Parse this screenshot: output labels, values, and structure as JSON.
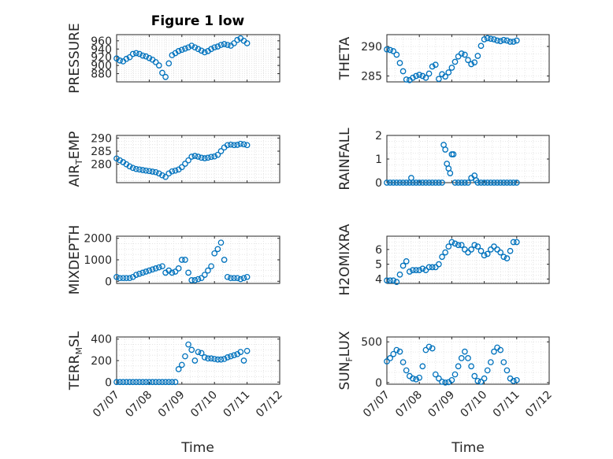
{
  "figure": {
    "title": "Figure 1 low",
    "xlabel": "Time"
  },
  "colors": {
    "marker": "#0072BD",
    "axis": "#262626",
    "grid": "#DFDFDF"
  },
  "x_ticks": [
    "07/07",
    "07/08",
    "07/09",
    "07/10",
    "07/11",
    "07/12"
  ],
  "chart_data": [
    {
      "type": "scatter",
      "id": "pressure",
      "ylabel": "PRESSURE",
      "x_range": [
        "07/07",
        "07/12"
      ],
      "ylim": [
        860,
        975
      ],
      "yticks": [
        880,
        900,
        920,
        940,
        960
      ],
      "grid": true,
      "x": [
        0,
        0.1,
        0.2,
        0.3,
        0.4,
        0.5,
        0.6,
        0.7,
        0.8,
        0.9,
        1.0,
        1.1,
        1.2,
        1.3,
        1.4,
        1.5,
        1.6,
        1.7,
        1.8,
        1.9,
        2.0,
        2.1,
        2.2,
        2.3,
        2.4,
        2.5,
        2.6,
        2.7,
        2.8,
        2.9,
        3.0,
        3.1,
        3.2,
        3.3,
        3.4,
        3.5,
        3.6,
        3.7,
        3.8,
        3.9,
        4.0
      ],
      "y": [
        917,
        912,
        910,
        916,
        920,
        928,
        930,
        928,
        924,
        922,
        918,
        914,
        908,
        900,
        882,
        872,
        905,
        925,
        930,
        935,
        938,
        941,
        944,
        948,
        944,
        940,
        936,
        932,
        935,
        940,
        944,
        946,
        950,
        952,
        950,
        948,
        954,
        962,
        966,
        960,
        954
      ]
    },
    {
      "type": "scatter",
      "id": "theta",
      "ylabel": "THETA",
      "x_range": [
        "07/07",
        "07/12"
      ],
      "ylim": [
        284,
        292
      ],
      "yticks": [
        285,
        290
      ],
      "grid": true,
      "x": [
        0,
        0.1,
        0.2,
        0.3,
        0.4,
        0.5,
        0.6,
        0.7,
        0.8,
        0.9,
        1.0,
        1.1,
        1.2,
        1.3,
        1.4,
        1.5,
        1.6,
        1.7,
        1.8,
        1.9,
        2.0,
        2.1,
        2.2,
        2.3,
        2.4,
        2.5,
        2.6,
        2.7,
        2.8,
        2.9,
        3.0,
        3.1,
        3.2,
        3.3,
        3.4,
        3.5,
        3.6,
        3.7,
        3.8,
        3.9,
        4.0
      ],
      "y": [
        289.5,
        289.4,
        289.2,
        288.6,
        287.2,
        285.8,
        284.4,
        284.3,
        284.7,
        285.0,
        285.2,
        285.0,
        284.7,
        285.4,
        286.6,
        286.9,
        284.5,
        285.3,
        284.9,
        285.6,
        286.4,
        287.4,
        288.3,
        288.8,
        288.6,
        287.7,
        287.0,
        287.3,
        288.4,
        290.1,
        291.2,
        291.4,
        291.3,
        291.2,
        291.0,
        290.9,
        291.1,
        291.0,
        290.8,
        290.8,
        291.0
      ]
    },
    {
      "type": "scatter",
      "id": "air_temp",
      "ylabel": "AIR_TEMP",
      "x_range": [
        "07/07",
        "07/12"
      ],
      "ylim": [
        273,
        291
      ],
      "yticks": [
        280,
        285,
        290
      ],
      "grid": true,
      "x": [
        0,
        0.1,
        0.2,
        0.3,
        0.4,
        0.5,
        0.6,
        0.7,
        0.8,
        0.9,
        1.0,
        1.1,
        1.2,
        1.3,
        1.4,
        1.5,
        1.6,
        1.7,
        1.8,
        1.9,
        2.0,
        2.1,
        2.2,
        2.3,
        2.4,
        2.5,
        2.6,
        2.7,
        2.8,
        2.9,
        3.0,
        3.1,
        3.2,
        3.3,
        3.4,
        3.5,
        3.6,
        3.7,
        3.8,
        3.9,
        4.0
      ],
      "y": [
        282.2,
        281.5,
        280.8,
        280.0,
        279.2,
        278.6,
        278.2,
        278.0,
        277.8,
        277.6,
        277.4,
        277.2,
        277.0,
        276.5,
        275.8,
        275.2,
        276.5,
        277.3,
        277.6,
        278.0,
        278.9,
        280.2,
        281.5,
        282.9,
        283.2,
        282.9,
        282.5,
        282.3,
        282.5,
        282.8,
        283.0,
        283.6,
        285.0,
        286.4,
        287.3,
        287.5,
        287.3,
        287.4,
        287.8,
        287.6,
        287.3
      ]
    },
    {
      "type": "scatter",
      "id": "rainfall",
      "ylabel": "RAINFALL",
      "x_range": [
        "07/07",
        "07/12"
      ],
      "ylim": [
        0,
        2
      ],
      "yticks": [
        0,
        1,
        2
      ],
      "grid": true,
      "x": [
        0,
        0.1,
        0.2,
        0.3,
        0.4,
        0.5,
        0.6,
        0.7,
        0.75,
        0.8,
        0.9,
        1.0,
        1.1,
        1.2,
        1.3,
        1.4,
        1.5,
        1.6,
        1.7,
        1.75,
        1.8,
        1.85,
        1.9,
        1.95,
        2.0,
        2.05,
        2.1,
        2.2,
        2.3,
        2.4,
        2.5,
        2.6,
        2.7,
        2.75,
        2.8,
        2.9,
        3.0,
        3.1,
        3.2,
        3.3,
        3.4,
        3.5,
        3.6,
        3.7,
        3.8,
        3.9,
        4.0
      ],
      "y": [
        0,
        0,
        0,
        0,
        0,
        0,
        0,
        0,
        0.2,
        0,
        0,
        0,
        0,
        0,
        0,
        0,
        0,
        0,
        0,
        1.6,
        1.4,
        0.8,
        0.6,
        0.4,
        1.2,
        1.2,
        0,
        0,
        0,
        0,
        0,
        0.2,
        0.3,
        0.1,
        0,
        0,
        0,
        0,
        0,
        0,
        0,
        0,
        0,
        0,
        0,
        0,
        0
      ]
    },
    {
      "type": "scatter",
      "id": "mixdepth",
      "ylabel": "MIXDEPTH",
      "x_range": [
        "07/07",
        "07/12"
      ],
      "ylim": [
        -100,
        2100
      ],
      "yticks": [
        0,
        1000,
        2000
      ],
      "grid": true,
      "x": [
        0,
        0.1,
        0.2,
        0.3,
        0.4,
        0.5,
        0.6,
        0.7,
        0.8,
        0.9,
        1.0,
        1.1,
        1.2,
        1.3,
        1.4,
        1.5,
        1.6,
        1.7,
        1.8,
        1.9,
        2.0,
        2.1,
        2.2,
        2.3,
        2.4,
        2.5,
        2.6,
        2.7,
        2.8,
        2.9,
        3.0,
        3.1,
        3.2,
        3.3,
        3.4,
        3.5,
        3.6,
        3.7,
        3.8,
        3.9,
        4.0
      ],
      "y": [
        200,
        150,
        150,
        150,
        150,
        200,
        300,
        350,
        400,
        450,
        500,
        550,
        600,
        650,
        700,
        400,
        500,
        400,
        450,
        600,
        1000,
        1000,
        400,
        50,
        50,
        100,
        150,
        300,
        500,
        700,
        1300,
        1500,
        1800,
        1000,
        200,
        150,
        150,
        150,
        100,
        150,
        200
      ]
    },
    {
      "type": "scatter",
      "id": "h2omixra",
      "ylabel": "H2OMIXRA",
      "x_range": [
        "07/07",
        "07/12"
      ],
      "ylim": [
        3.7,
        6.9
      ],
      "yticks": [
        4,
        5,
        6
      ],
      "grid": true,
      "x": [
        0,
        0.1,
        0.2,
        0.3,
        0.4,
        0.5,
        0.6,
        0.7,
        0.8,
        0.9,
        1.0,
        1.1,
        1.2,
        1.3,
        1.4,
        1.5,
        1.6,
        1.7,
        1.8,
        1.9,
        2.0,
        2.1,
        2.2,
        2.3,
        2.4,
        2.5,
        2.6,
        2.7,
        2.8,
        2.9,
        3.0,
        3.1,
        3.2,
        3.3,
        3.4,
        3.5,
        3.6,
        3.7,
        3.8,
        3.9,
        4.0
      ],
      "y": [
        3.9,
        3.9,
        3.9,
        3.8,
        4.3,
        4.9,
        5.2,
        4.5,
        4.6,
        4.6,
        4.6,
        4.7,
        4.6,
        4.8,
        4.8,
        4.8,
        5.0,
        5.5,
        5.8,
        6.2,
        6.5,
        6.4,
        6.3,
        6.3,
        6.0,
        5.8,
        6.0,
        6.3,
        6.2,
        5.9,
        5.6,
        5.7,
        6.0,
        6.2,
        6.0,
        5.8,
        5.5,
        5.4,
        5.9,
        6.5,
        6.5
      ]
    },
    {
      "type": "scatter",
      "id": "terr_msl",
      "ylabel": "TERR_MSL",
      "x_range": [
        "07/07",
        "07/12"
      ],
      "ylim": [
        -20,
        420
      ],
      "yticks": [
        0,
        200,
        400
      ],
      "grid": true,
      "x": [
        0,
        0.1,
        0.2,
        0.3,
        0.4,
        0.5,
        0.6,
        0.7,
        0.8,
        0.9,
        1.0,
        1.1,
        1.2,
        1.3,
        1.4,
        1.5,
        1.6,
        1.7,
        1.8,
        1.9,
        2.0,
        2.1,
        2.2,
        2.3,
        2.4,
        2.5,
        2.6,
        2.7,
        2.8,
        2.9,
        3.0,
        3.1,
        3.2,
        3.3,
        3.4,
        3.5,
        3.6,
        3.7,
        3.8,
        3.9,
        4.0
      ],
      "y": [
        0,
        0,
        0,
        0,
        0,
        0,
        0,
        0,
        0,
        0,
        0,
        0,
        0,
        0,
        0,
        0,
        0,
        0,
        0,
        120,
        160,
        240,
        350,
        300,
        200,
        280,
        270,
        230,
        220,
        220,
        215,
        210,
        210,
        215,
        230,
        240,
        250,
        260,
        280,
        200,
        290
      ]
    },
    {
      "type": "scatter",
      "id": "sun_flux",
      "ylabel": "SUN_FLUX",
      "x_range": [
        "07/07",
        "07/12"
      ],
      "ylim": [
        -20,
        560
      ],
      "yticks": [
        0,
        500
      ],
      "grid": true,
      "x": [
        0,
        0.1,
        0.2,
        0.3,
        0.4,
        0.5,
        0.6,
        0.7,
        0.8,
        0.9,
        1.0,
        1.1,
        1.2,
        1.3,
        1.4,
        1.5,
        1.6,
        1.7,
        1.8,
        1.9,
        2.0,
        2.1,
        2.2,
        2.3,
        2.4,
        2.5,
        2.6,
        2.7,
        2.8,
        2.9,
        3.0,
        3.1,
        3.2,
        3.3,
        3.4,
        3.5,
        3.6,
        3.7,
        3.8,
        3.9,
        4.0
      ],
      "y": [
        260,
        300,
        350,
        400,
        380,
        250,
        150,
        80,
        50,
        40,
        60,
        200,
        400,
        440,
        420,
        100,
        50,
        10,
        0,
        5,
        30,
        100,
        200,
        300,
        380,
        300,
        200,
        80,
        20,
        10,
        50,
        150,
        250,
        380,
        430,
        400,
        250,
        150,
        50,
        20,
        30
      ]
    }
  ]
}
